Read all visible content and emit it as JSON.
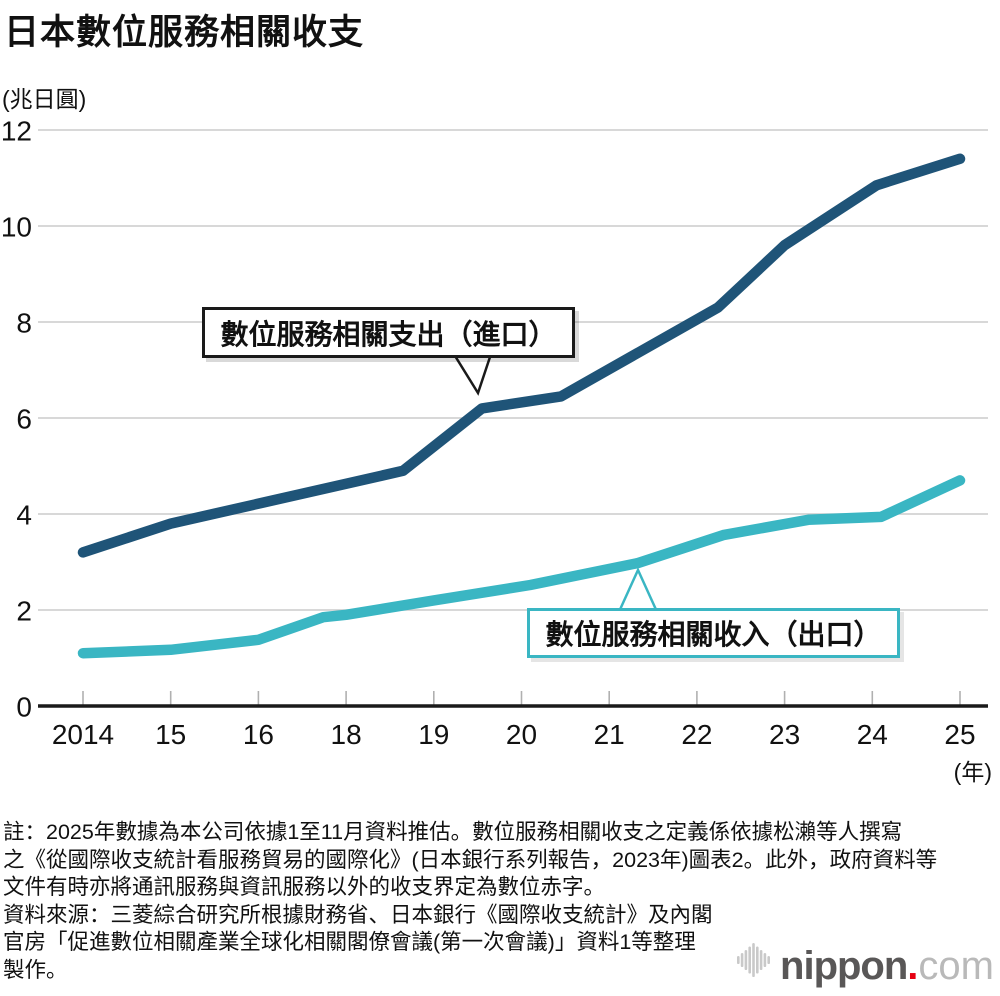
{
  "title": "日本數位服務相關收支",
  "unit_label": "(兆日圓)",
  "x_axis_suffix": "(年)",
  "annotations": {
    "expenditure": "數位服務相關支出（進口）",
    "income": "數位服務相關收入（出口）"
  },
  "footer": {
    "lines": [
      "註：2025年數據為本公司依據1至11月資料推估。數位服務相關收支之定義係依據松瀨等人撰寫",
      "之《從國際收支統計看服務貿易的國際化》(日本銀行系列報告，2023年)圖表2。此外，政府資料等",
      "文件有時亦將通訊服務與資訊服務以外的收支界定為數位赤字。",
      "資料來源：三菱綜合研究所根據財務省、日本銀行《國際收支統計》及內閣",
      "官房「促進數位相關產業全球化相關閣僚會議(第一次會議)」資料1等整理",
      "製作。"
    ]
  },
  "logo": {
    "name": "nippon",
    "dot": ".",
    "tld": "com"
  },
  "colors": {
    "expenditure": "#1f5478",
    "income": "#3ab6c3",
    "grid": "#cccccc",
    "axis": "#1a1a1a",
    "tick": "#b0b0b0",
    "text": "#111111",
    "logo_gray": "#595757",
    "logo_light": "#c9c9c9",
    "logo_red": "#e60012"
  },
  "chart_data": {
    "type": "line",
    "title": "日本數位服務相關收支",
    "ylabel": "兆日圓",
    "xlabel": "年",
    "ylim": [
      0,
      12
    ],
    "yticks": [
      0,
      2,
      4,
      6,
      8,
      10,
      12
    ],
    "grid": "horizontal",
    "legend_position": "callouts-on-plot",
    "categories": [
      "2014",
      "15",
      "16",
      "18",
      "19",
      "20",
      "21",
      "22",
      "23",
      "24",
      "25"
    ],
    "series": [
      {
        "name": "數位服務相關支出（進口）",
        "color": "#1f5478",
        "values": [
          3.2,
          3.8,
          4.2,
          4.6,
          5.4,
          6.3,
          7.0,
          8.1,
          9.6,
          10.9,
          11.4
        ],
        "points": [
          [
            0,
            3.2
          ],
          [
            1,
            3.8
          ],
          [
            3.65,
            4.9
          ],
          [
            4.55,
            6.2
          ],
          [
            5.45,
            6.45
          ],
          [
            7.24,
            8.3
          ],
          [
            8.0,
            9.6
          ],
          [
            9.05,
            10.85
          ],
          [
            10,
            11.4
          ]
        ]
      },
      {
        "name": "數位服務相關收入（出口）",
        "color": "#3ab6c3",
        "values": [
          1.1,
          1.2,
          1.4,
          1.9,
          2.2,
          2.5,
          2.9,
          3.4,
          3.8,
          3.9,
          4.7
        ],
        "points": [
          [
            0,
            1.1
          ],
          [
            1,
            1.17
          ],
          [
            2,
            1.38
          ],
          [
            2.74,
            1.85
          ],
          [
            3,
            1.9
          ],
          [
            4,
            2.2
          ],
          [
            5.1,
            2.52
          ],
          [
            6.33,
            2.98
          ],
          [
            7.3,
            3.56
          ],
          [
            8.27,
            3.88
          ],
          [
            9.1,
            3.94
          ],
          [
            10,
            4.7
          ]
        ]
      }
    ],
    "note": "2025年數據為依據1至11月資料之推估值"
  }
}
